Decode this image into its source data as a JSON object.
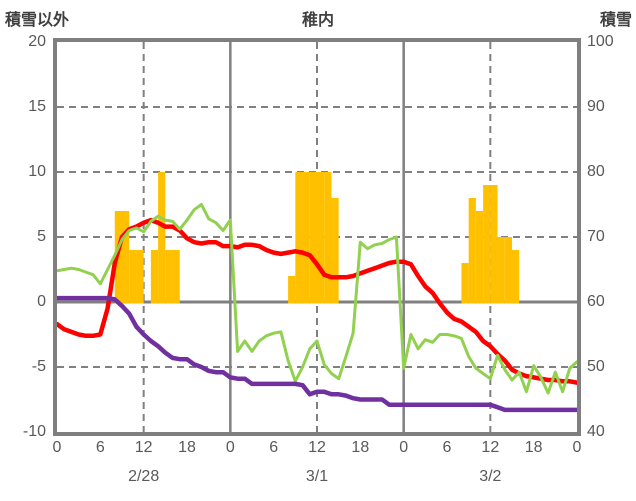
{
  "header": {
    "left_axis_title": "積雪以外",
    "title": "稚内",
    "right_axis_title": "積雪"
  },
  "colors": {
    "bar": "#FFC000",
    "red_line": "#FF0000",
    "green_line": "#92D050",
    "purple_line": "#7030A0",
    "grid": "#808080",
    "frame": "#7f7f7f",
    "tick_text": "#595959",
    "header_text": "#404040"
  },
  "chart_data": {
    "type": "bar+line",
    "title": "稚内",
    "left_axis": {
      "title": "積雪以外",
      "ticks": [
        20,
        15,
        10,
        5,
        0,
        -5,
        -10
      ],
      "range": [
        -10,
        20
      ]
    },
    "right_axis": {
      "title": "積雪",
      "ticks": [
        100,
        90,
        80,
        70,
        60,
        50,
        40
      ],
      "range": [
        40,
        100
      ]
    },
    "x_axis": {
      "unit": "hour",
      "range": [
        0,
        72
      ],
      "tick_hours": [
        0,
        6,
        12,
        18,
        24,
        30,
        36,
        42,
        48,
        54,
        60,
        66,
        72
      ],
      "tick_labels": [
        "0",
        "6",
        "12",
        "18",
        "0",
        "6",
        "12",
        "18",
        "0",
        "6",
        "12",
        "18",
        "0"
      ],
      "date_labels": [
        {
          "label": "2/28",
          "hour": 12
        },
        {
          "label": "3/1",
          "hour": 36
        },
        {
          "label": "3/2",
          "hour": 60
        }
      ]
    },
    "gridlines": {
      "horizontal_dashed_values": [
        15,
        10,
        5,
        -5
      ],
      "horizontal_solid_values": [
        0
      ],
      "vertical_dashed_hours": [
        12,
        36,
        60
      ],
      "vertical_solid_hours": [
        24,
        48
      ]
    },
    "series": [
      {
        "name": "orange-bars",
        "type": "bar",
        "color": "#FFC000",
        "axis": "left",
        "points": [
          [
            8,
            7
          ],
          [
            9,
            7
          ],
          [
            10,
            4
          ],
          [
            11,
            4
          ],
          [
            13,
            4
          ],
          [
            14,
            10
          ],
          [
            15,
            4
          ],
          [
            16,
            4
          ],
          [
            32,
            2
          ],
          [
            33,
            10
          ],
          [
            34,
            10
          ],
          [
            35,
            10
          ],
          [
            36,
            10
          ],
          [
            37,
            10
          ],
          [
            38,
            8
          ],
          [
            56,
            3
          ],
          [
            57,
            8
          ],
          [
            58,
            7
          ],
          [
            59,
            9
          ],
          [
            60,
            9
          ],
          [
            61,
            5
          ],
          [
            62,
            5
          ],
          [
            63,
            4
          ]
        ]
      },
      {
        "name": "red-line",
        "type": "line",
        "color": "#FF0000",
        "width": 4.5,
        "axis": "left",
        "points": [
          [
            0,
            -1.7
          ],
          [
            1,
            -2.1
          ],
          [
            2,
            -2.3
          ],
          [
            3,
            -2.5
          ],
          [
            4,
            -2.6
          ],
          [
            5,
            -2.6
          ],
          [
            6,
            -2.5
          ],
          [
            7,
            -0.5
          ],
          [
            8,
            3.0
          ],
          [
            9,
            5.0
          ],
          [
            10,
            5.6
          ],
          [
            11,
            5.8
          ],
          [
            12,
            6.1
          ],
          [
            13,
            6.3
          ],
          [
            14,
            6.1
          ],
          [
            15,
            5.8
          ],
          [
            16,
            5.8
          ],
          [
            17,
            5.5
          ],
          [
            18,
            4.9
          ],
          [
            19,
            4.6
          ],
          [
            20,
            4.5
          ],
          [
            21,
            4.6
          ],
          [
            22,
            4.6
          ],
          [
            23,
            4.3
          ],
          [
            24,
            4.3
          ],
          [
            25,
            4.2
          ],
          [
            26,
            4.4
          ],
          [
            27,
            4.4
          ],
          [
            28,
            4.3
          ],
          [
            29,
            4.0
          ],
          [
            30,
            3.8
          ],
          [
            31,
            3.7
          ],
          [
            32,
            3.8
          ],
          [
            33,
            3.9
          ],
          [
            34,
            3.8
          ],
          [
            35,
            3.6
          ],
          [
            36,
            2.9
          ],
          [
            37,
            2.1
          ],
          [
            38,
            1.9
          ],
          [
            39,
            1.9
          ],
          [
            40,
            1.9
          ],
          [
            41,
            2.0
          ],
          [
            42,
            2.2
          ],
          [
            43,
            2.4
          ],
          [
            44,
            2.6
          ],
          [
            45,
            2.8
          ],
          [
            46,
            3.0
          ],
          [
            47,
            3.1
          ],
          [
            48,
            3.1
          ],
          [
            49,
            2.9
          ],
          [
            50,
            2.0
          ],
          [
            51,
            1.2
          ],
          [
            52,
            0.7
          ],
          [
            53,
            -0.1
          ],
          [
            54,
            -0.8
          ],
          [
            55,
            -1.3
          ],
          [
            56,
            -1.5
          ],
          [
            57,
            -1.9
          ],
          [
            58,
            -2.3
          ],
          [
            59,
            -3.0
          ],
          [
            60,
            -3.4
          ],
          [
            61,
            -4.0
          ],
          [
            62,
            -4.5
          ],
          [
            63,
            -5.2
          ],
          [
            64,
            -5.5
          ],
          [
            65,
            -5.7
          ],
          [
            66,
            -5.8
          ],
          [
            67,
            -5.9
          ],
          [
            68,
            -6.0
          ],
          [
            69,
            -6.0
          ],
          [
            70,
            -6.1
          ],
          [
            71,
            -6.1
          ],
          [
            72,
            -6.2
          ]
        ]
      },
      {
        "name": "green-line",
        "type": "line",
        "color": "#92D050",
        "width": 3,
        "axis": "left",
        "points": [
          [
            0,
            2.4
          ],
          [
            1,
            2.5
          ],
          [
            2,
            2.6
          ],
          [
            3,
            2.5
          ],
          [
            4,
            2.3
          ],
          [
            5,
            2.1
          ],
          [
            6,
            1.4
          ],
          [
            7,
            2.5
          ],
          [
            8,
            3.6
          ],
          [
            9,
            4.8
          ],
          [
            10,
            5.5
          ],
          [
            11,
            5.7
          ],
          [
            12,
            5.4
          ],
          [
            13,
            6.2
          ],
          [
            14,
            6.6
          ],
          [
            15,
            6.3
          ],
          [
            16,
            6.2
          ],
          [
            17,
            5.6
          ],
          [
            18,
            6.3
          ],
          [
            19,
            7.1
          ],
          [
            20,
            7.5
          ],
          [
            21,
            6.4
          ],
          [
            22,
            6.1
          ],
          [
            23,
            5.5
          ],
          [
            24,
            6.3
          ],
          [
            25,
            -3.8
          ],
          [
            26,
            -3.0
          ],
          [
            27,
            -3.8
          ],
          [
            28,
            -3.0
          ],
          [
            29,
            -2.6
          ],
          [
            30,
            -2.4
          ],
          [
            31,
            -2.3
          ],
          [
            32,
            -4.5
          ],
          [
            33,
            -6.1
          ],
          [
            34,
            -5.0
          ],
          [
            35,
            -3.6
          ],
          [
            36,
            -3.0
          ],
          [
            37,
            -4.8
          ],
          [
            38,
            -5.5
          ],
          [
            39,
            -5.9
          ],
          [
            40,
            -4.2
          ],
          [
            41,
            -2.4
          ],
          [
            42,
            4.6
          ],
          [
            43,
            4.1
          ],
          [
            44,
            4.4
          ],
          [
            45,
            4.5
          ],
          [
            46,
            4.8
          ],
          [
            47,
            5.0
          ],
          [
            48,
            -5.1
          ],
          [
            49,
            -2.5
          ],
          [
            50,
            -3.6
          ],
          [
            51,
            -2.9
          ],
          [
            52,
            -3.1
          ],
          [
            53,
            -2.5
          ],
          [
            54,
            -2.5
          ],
          [
            55,
            -2.6
          ],
          [
            56,
            -2.8
          ],
          [
            57,
            -4.2
          ],
          [
            58,
            -5.1
          ],
          [
            59,
            -5.5
          ],
          [
            60,
            -5.9
          ],
          [
            61,
            -4.1
          ],
          [
            62,
            -5.2
          ],
          [
            63,
            -6.0
          ],
          [
            64,
            -5.4
          ],
          [
            65,
            -6.9
          ],
          [
            66,
            -4.9
          ],
          [
            67,
            -5.8
          ],
          [
            68,
            -7.0
          ],
          [
            69,
            -5.4
          ],
          [
            70,
            -6.9
          ],
          [
            71,
            -5.1
          ],
          [
            72,
            -4.6
          ]
        ]
      },
      {
        "name": "purple-line",
        "type": "line",
        "color": "#7030A0",
        "width": 4.5,
        "axis": "left",
        "points": [
          [
            0,
            0.3
          ],
          [
            1,
            0.3
          ],
          [
            2,
            0.3
          ],
          [
            3,
            0.3
          ],
          [
            4,
            0.3
          ],
          [
            5,
            0.3
          ],
          [
            6,
            0.3
          ],
          [
            7,
            0.3
          ],
          [
            8,
            0.2
          ],
          [
            9,
            -0.3
          ],
          [
            10,
            -0.9
          ],
          [
            11,
            -1.9
          ],
          [
            12,
            -2.5
          ],
          [
            13,
            -3.0
          ],
          [
            14,
            -3.4
          ],
          [
            15,
            -3.9
          ],
          [
            16,
            -4.3
          ],
          [
            17,
            -4.4
          ],
          [
            18,
            -4.4
          ],
          [
            19,
            -4.8
          ],
          [
            20,
            -5.0
          ],
          [
            21,
            -5.3
          ],
          [
            22,
            -5.4
          ],
          [
            23,
            -5.4
          ],
          [
            24,
            -5.8
          ],
          [
            25,
            -5.9
          ],
          [
            26,
            -5.9
          ],
          [
            27,
            -6.3
          ],
          [
            28,
            -6.3
          ],
          [
            29,
            -6.3
          ],
          [
            30,
            -6.3
          ],
          [
            31,
            -6.3
          ],
          [
            32,
            -6.3
          ],
          [
            33,
            -6.3
          ],
          [
            34,
            -6.4
          ],
          [
            35,
            -7.1
          ],
          [
            36,
            -6.9
          ],
          [
            37,
            -6.9
          ],
          [
            38,
            -7.1
          ],
          [
            39,
            -7.1
          ],
          [
            40,
            -7.2
          ],
          [
            41,
            -7.4
          ],
          [
            42,
            -7.5
          ],
          [
            43,
            -7.5
          ],
          [
            44,
            -7.5
          ],
          [
            45,
            -7.5
          ],
          [
            46,
            -7.9
          ],
          [
            47,
            -7.9
          ],
          [
            48,
            -7.9
          ],
          [
            49,
            -7.9
          ],
          [
            50,
            -7.9
          ],
          [
            51,
            -7.9
          ],
          [
            52,
            -7.9
          ],
          [
            53,
            -7.9
          ],
          [
            54,
            -7.9
          ],
          [
            55,
            -7.9
          ],
          [
            56,
            -7.9
          ],
          [
            57,
            -7.9
          ],
          [
            58,
            -7.9
          ],
          [
            59,
            -7.9
          ],
          [
            60,
            -7.9
          ],
          [
            61,
            -8.1
          ],
          [
            62,
            -8.3
          ],
          [
            63,
            -8.3
          ],
          [
            64,
            -8.3
          ],
          [
            65,
            -8.3
          ],
          [
            66,
            -8.3
          ],
          [
            67,
            -8.3
          ],
          [
            68,
            -8.3
          ],
          [
            69,
            -8.3
          ],
          [
            70,
            -8.3
          ],
          [
            71,
            -8.3
          ],
          [
            72,
            -8.3
          ]
        ]
      }
    ]
  }
}
